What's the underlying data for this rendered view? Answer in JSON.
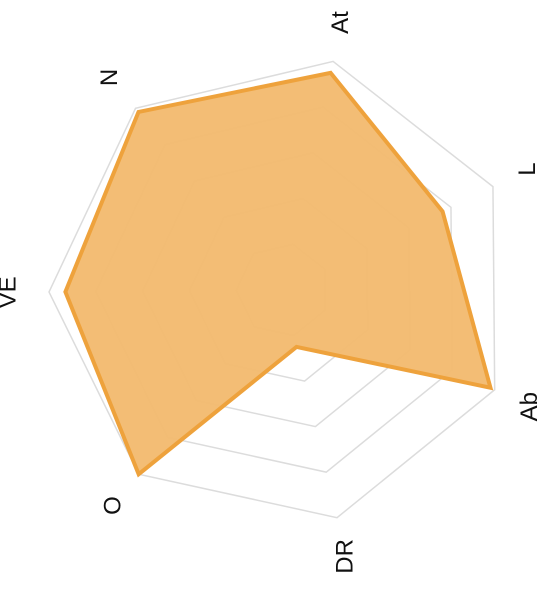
{
  "chart_data": {
    "type": "radar",
    "categories": [
      "At",
      "L",
      "Ab",
      "DR",
      "O",
      "VE",
      "N"
    ],
    "values": [
      4.75,
      3.8,
      4.9,
      1.25,
      5,
      4.65,
      4.9
    ],
    "rlim": [
      0,
      5
    ],
    "rticks": [
      1,
      2,
      3,
      4,
      5
    ],
    "color": "#eea23c",
    "fill": "#f2b96e",
    "grid": true
  }
}
